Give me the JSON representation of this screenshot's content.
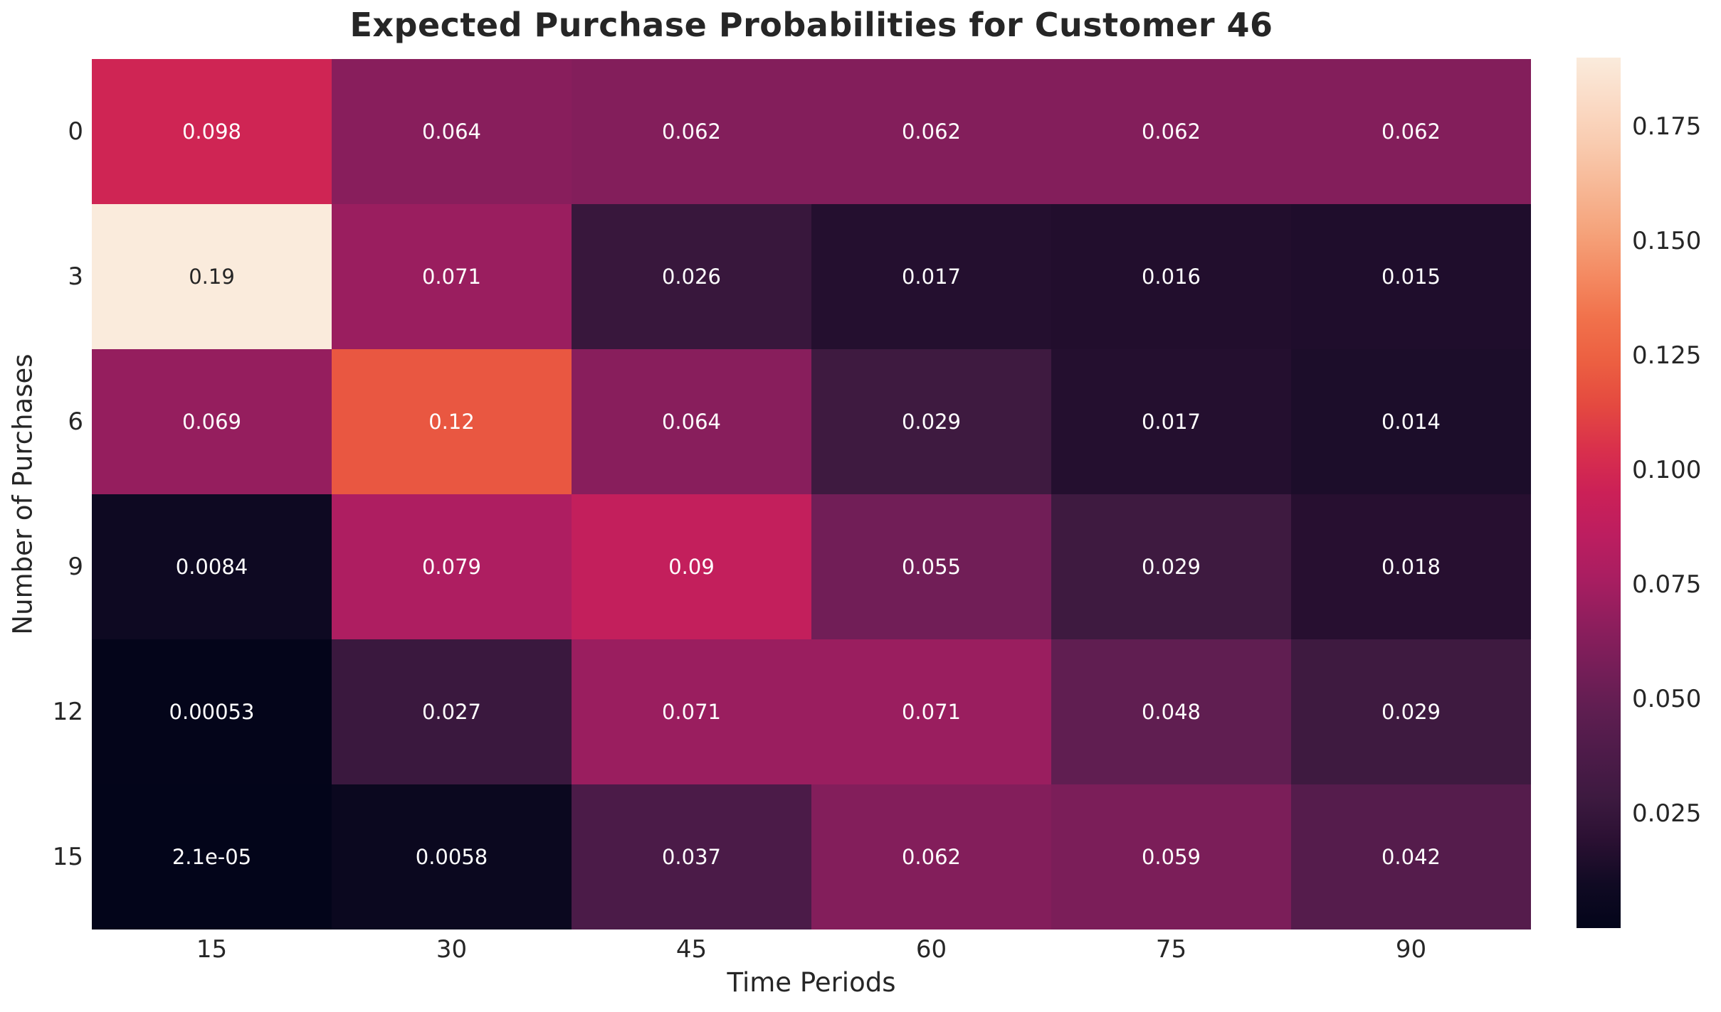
{
  "title": "Expected Purchase Probabilities for Customer 46",
  "colors": {
    "background": "#FFFFFF",
    "text": "#262626",
    "annot_light": "#FFFFFF",
    "annot_dark": "#262626"
  },
  "chart_data": {
    "type": "heatmap",
    "title": "Expected Purchase Probabilities for Customer 46",
    "xlabel": "Time Periods",
    "ylabel": "Number of Purchases",
    "x_tick_labels": [
      "15",
      "30",
      "45",
      "60",
      "75",
      "90"
    ],
    "y_tick_labels": [
      "0",
      "3",
      "6",
      "9",
      "12",
      "15"
    ],
    "rows": [
      {
        "y": "0",
        "values": [
          0.098,
          0.064,
          0.062,
          0.062,
          0.062,
          0.062
        ],
        "labels": [
          "0.098",
          "0.064",
          "0.062",
          "0.062",
          "0.062",
          "0.062"
        ]
      },
      {
        "y": "3",
        "values": [
          0.19,
          0.071,
          0.026,
          0.017,
          0.016,
          0.015
        ],
        "labels": [
          "0.19",
          "0.071",
          "0.026",
          "0.017",
          "0.016",
          "0.015"
        ]
      },
      {
        "y": "6",
        "values": [
          0.069,
          0.12,
          0.064,
          0.029,
          0.017,
          0.014
        ],
        "labels": [
          "0.069",
          "0.12",
          "0.064",
          "0.029",
          "0.017",
          "0.014"
        ]
      },
      {
        "y": "9",
        "values": [
          0.0084,
          0.079,
          0.09,
          0.055,
          0.029,
          0.018
        ],
        "labels": [
          "0.0084",
          "0.079",
          "0.09",
          "0.055",
          "0.029",
          "0.018"
        ]
      },
      {
        "y": "12",
        "values": [
          0.00053,
          0.027,
          0.071,
          0.071,
          0.048,
          0.029
        ],
        "labels": [
          "0.00053",
          "0.027",
          "0.071",
          "0.071",
          "0.048",
          "0.029"
        ]
      },
      {
        "y": "15",
        "values": [
          2.1e-05,
          0.0058,
          0.037,
          0.062,
          0.059,
          0.042
        ],
        "labels": [
          "2.1e-05",
          "0.0058",
          "0.037",
          "0.062",
          "0.059",
          "0.042"
        ]
      }
    ],
    "vmin": 2.1e-05,
    "vmax": 0.19,
    "grid": false,
    "legend_position": "right-colorbar",
    "colorbar": {
      "tick_values": [
        0.175,
        0.15,
        0.125,
        0.1,
        0.075,
        0.05,
        0.025
      ],
      "tick_labels": [
        "0.175",
        "0.150",
        "0.125",
        "0.100",
        "0.075",
        "0.050",
        "0.025"
      ]
    },
    "colormap": {
      "name": "rocket",
      "stops": [
        {
          "f": 0.0,
          "hex": "#03051A"
        },
        {
          "f": 0.05,
          "hex": "#100A23"
        },
        {
          "f": 0.1,
          "hex": "#2A1032"
        },
        {
          "f": 0.15,
          "hex": "#3D1A40"
        },
        {
          "f": 0.2,
          "hex": "#4D1B49"
        },
        {
          "f": 0.25,
          "hex": "#5F1E51"
        },
        {
          "f": 0.3,
          "hex": "#761E58"
        },
        {
          "f": 0.35,
          "hex": "#8E1E5D"
        },
        {
          "f": 0.4,
          "hex": "#A81E61"
        },
        {
          "f": 0.45,
          "hex": "#BC1E60"
        },
        {
          "f": 0.5,
          "hex": "#CB2057"
        },
        {
          "f": 0.55,
          "hex": "#D9304C"
        },
        {
          "f": 0.6,
          "hex": "#E44940"
        },
        {
          "f": 0.65,
          "hex": "#EC5F41"
        },
        {
          "f": 0.7,
          "hex": "#F1714B"
        },
        {
          "f": 0.75,
          "hex": "#F48A62"
        },
        {
          "f": 0.8,
          "hex": "#F5A37B"
        },
        {
          "f": 0.85,
          "hex": "#F7B795"
        },
        {
          "f": 0.9,
          "hex": "#F9CBAF"
        },
        {
          "f": 0.95,
          "hex": "#FADBC6"
        },
        {
          "f": 1.0,
          "hex": "#FAEBDC"
        }
      ]
    }
  }
}
